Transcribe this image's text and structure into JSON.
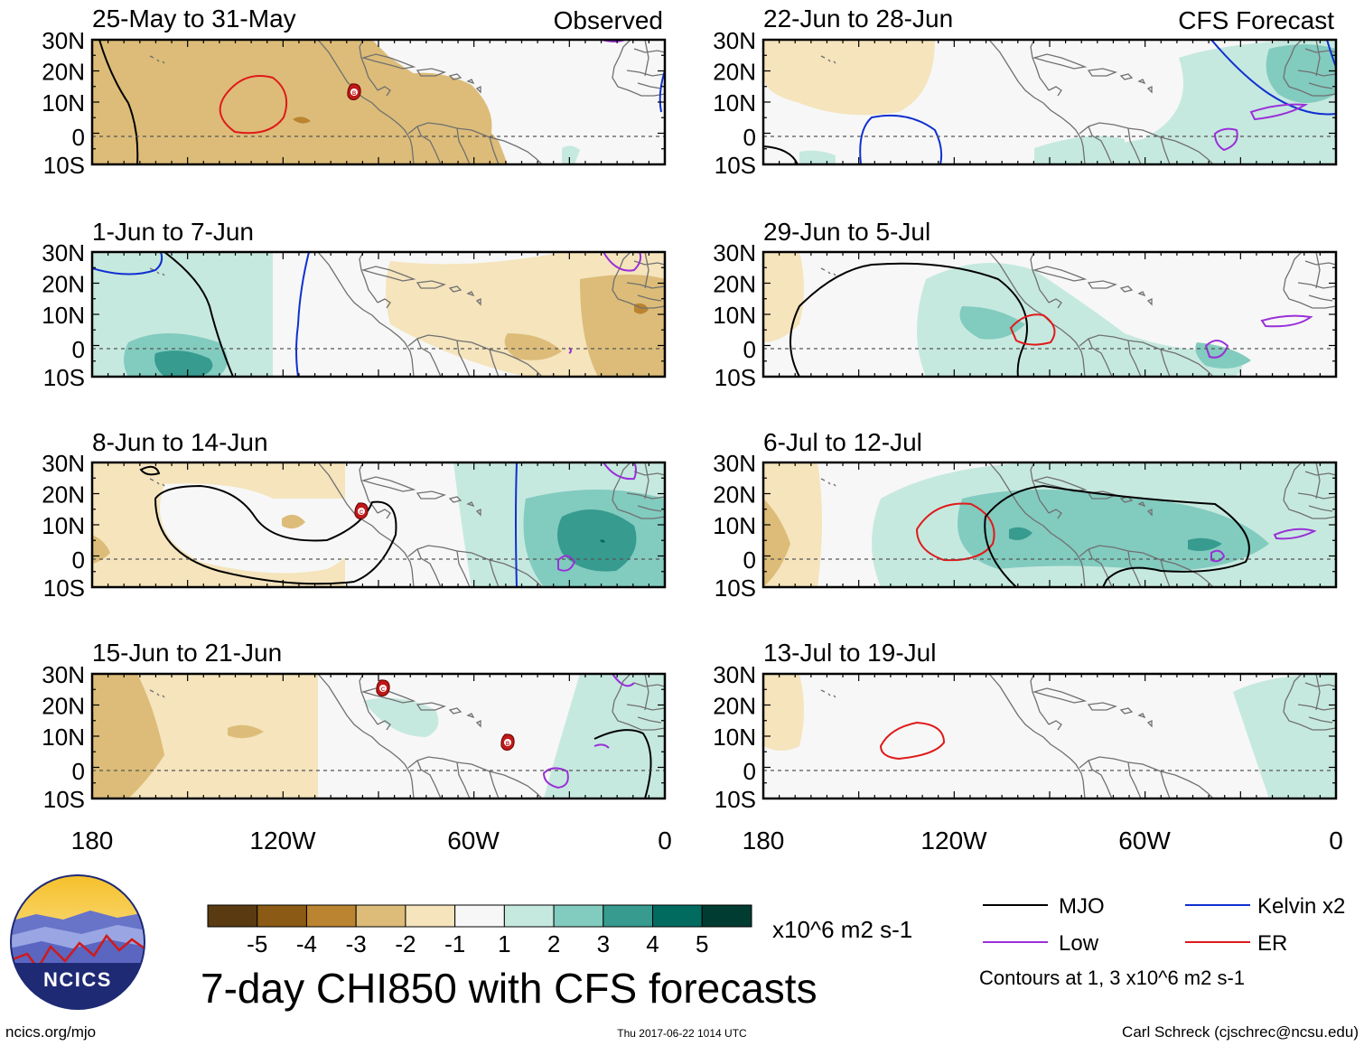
{
  "panels": [
    {
      "id": "p1",
      "title": "25-May to 31-May",
      "tag": "Observed"
    },
    {
      "id": "p2",
      "title": "1-Jun to 7-Jun",
      "tag": ""
    },
    {
      "id": "p3",
      "title": "8-Jun to 14-Jun",
      "tag": ""
    },
    {
      "id": "p4",
      "title": "15-Jun to 21-Jun",
      "tag": ""
    },
    {
      "id": "p5",
      "title": "22-Jun to 28-Jun",
      "tag": "CFS Forecast"
    },
    {
      "id": "p6",
      "title": "29-Jun to 5-Jul",
      "tag": ""
    },
    {
      "id": "p7",
      "title": "6-Jul to 12-Jul",
      "tag": ""
    },
    {
      "id": "p8",
      "title": "13-Jul to 19-Jul",
      "tag": ""
    }
  ],
  "lat_labels": [
    "30N",
    "20N",
    "10N",
    "0",
    "10S"
  ],
  "lon_labels": [
    "180",
    "120W",
    "60W",
    "0"
  ],
  "storm_markers": [
    {
      "panel": 0,
      "letter": "B"
    },
    {
      "panel": 2,
      "letter": "C"
    },
    {
      "panel": 3,
      "letter": "C"
    },
    {
      "panel": 3,
      "letter": "B"
    }
  ],
  "colorbar": {
    "colors": [
      "#5a3a10",
      "#8b5a14",
      "#bb8430",
      "#dcbc78",
      "#f5e4bc",
      "#f7f7f7",
      "#c6e9df",
      "#82cbbf",
      "#379b8f",
      "#016b60",
      "#003c31"
    ],
    "labels": [
      "-5",
      "-4",
      "-3",
      "-2",
      "-1",
      "1",
      "2",
      "3",
      "4",
      "5"
    ],
    "units": "x10^6 m2 s-1"
  },
  "title": "7-day CHI850 with CFS forecasts",
  "legend": {
    "items": [
      {
        "label": "MJO",
        "color": "#000000"
      },
      {
        "label": "Kelvin x2",
        "color": "#1030d0"
      },
      {
        "label": "Low",
        "color": "#9a30d8"
      },
      {
        "label": "ER",
        "color": "#e01a1a"
      }
    ],
    "note": "Contours at 1, 3 x10^6 m2 s-1"
  },
  "logo": {
    "text": "NCICS"
  },
  "footer": {
    "url": "ncics.org/mjo",
    "timestamp": "Thu 2017-06-22 1014 UTC",
    "author": "Carl Schreck (cjschrec@ncsu.edu)"
  }
}
